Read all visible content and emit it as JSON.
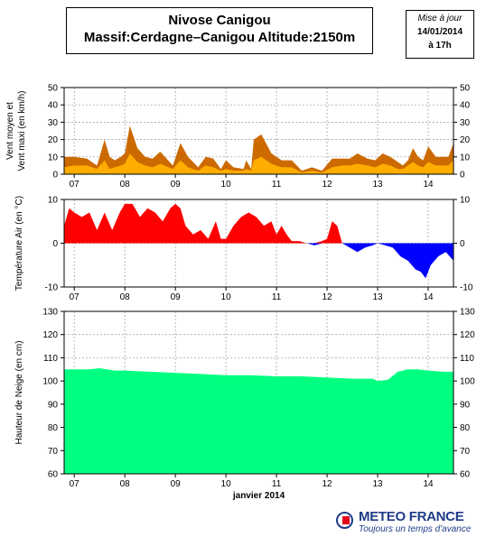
{
  "header": {
    "title_line1": "Nivose Canigou",
    "title_line2": "Massif:Cerdagne–Canigou Altitude:2150m"
  },
  "update_box": {
    "heading": "Mise à jour",
    "date": "14/01/2014",
    "time": "à 17h"
  },
  "logo": {
    "name": "METEO FRANCE",
    "tagline": "Toujours un temps d'avance"
  },
  "colors": {
    "wind_max": "#cc6a00",
    "wind_mean": "#ffad00",
    "temp_pos": "#ff0000",
    "temp_neg": "#0000ff",
    "snow": "#00ff80",
    "grid": "#9a9a9a"
  },
  "chart_data": [
    {
      "type": "area",
      "ylabel": "Vent moyen et Vent maxi (en km/h)",
      "x_tick_labels": [
        "07",
        "08",
        "09",
        "10",
        "11",
        "12",
        "13",
        "14"
      ],
      "x_tick_days": [
        7,
        8,
        9,
        10,
        11,
        12,
        13,
        14
      ],
      "ylim": [
        0,
        50
      ],
      "yticks": [
        0,
        10,
        20,
        30,
        40,
        50
      ],
      "x": [
        6.8,
        7.0,
        7.25,
        7.45,
        7.6,
        7.7,
        7.8,
        7.92,
        8.0,
        8.1,
        8.25,
        8.4,
        8.55,
        8.7,
        8.95,
        9.1,
        9.25,
        9.35,
        9.45,
        9.6,
        9.75,
        9.9,
        10.0,
        10.15,
        10.35,
        10.4,
        10.5,
        10.55,
        10.7,
        10.9,
        11.1,
        11.3,
        11.5,
        11.7,
        11.9,
        12.1,
        12.3,
        12.45,
        12.6,
        12.8,
        12.95,
        13.1,
        13.25,
        13.4,
        13.5,
        13.6,
        13.7,
        13.8,
        13.9,
        14.0,
        14.15,
        14.3,
        14.4,
        14.5
      ],
      "series": [
        {
          "values": [
            10,
            10,
            9,
            5,
            20,
            10,
            8,
            10,
            12,
            28,
            15,
            10,
            9,
            13,
            5,
            18,
            10,
            7,
            4,
            10,
            9,
            3,
            8,
            4,
            3,
            8,
            3,
            20,
            23,
            12,
            8,
            8,
            2,
            4,
            2,
            9,
            9,
            9,
            12,
            9,
            8,
            12,
            10,
            7,
            5,
            8,
            15,
            10,
            8,
            16,
            10,
            10,
            10,
            18
          ]
        },
        {
          "values": [
            4,
            5,
            5,
            3,
            8,
            3,
            4,
            5,
            6,
            12,
            7,
            5,
            4,
            6,
            3,
            8,
            4,
            3,
            2,
            5,
            4,
            2,
            3,
            2,
            2,
            3,
            2,
            8,
            10,
            6,
            4,
            4,
            1,
            2,
            1,
            4,
            5,
            5,
            6,
            5,
            4,
            6,
            5,
            3,
            3,
            5,
            7,
            5,
            4,
            7,
            5,
            5,
            5,
            8
          ]
        }
      ]
    },
    {
      "type": "area",
      "ylabel": "Température Air (en °C)",
      "x_tick_labels": [
        "07",
        "08",
        "09",
        "10",
        "11",
        "12",
        "13",
        "14"
      ],
      "x_tick_days": [
        7,
        8,
        9,
        10,
        11,
        12,
        13,
        14
      ],
      "ylim": [
        -10,
        10
      ],
      "yticks": [
        -10,
        0,
        10
      ],
      "x": [
        6.8,
        6.9,
        7.0,
        7.15,
        7.3,
        7.45,
        7.6,
        7.75,
        7.9,
        8.0,
        8.15,
        8.3,
        8.45,
        8.6,
        8.75,
        8.9,
        9.0,
        9.1,
        9.2,
        9.35,
        9.5,
        9.65,
        9.8,
        9.9,
        10.0,
        10.15,
        10.3,
        10.45,
        10.6,
        10.75,
        10.9,
        11.0,
        11.1,
        11.2,
        11.3,
        11.45,
        11.6,
        11.75,
        11.9,
        12.0,
        12.1,
        12.2,
        12.3,
        12.45,
        12.6,
        12.75,
        12.9,
        13.0,
        13.15,
        13.3,
        13.45,
        13.6,
        13.75,
        13.85,
        13.95,
        14.05,
        14.2,
        14.35,
        14.5
      ],
      "series": [
        {
          "values": [
            4,
            8,
            7,
            6,
            7,
            3,
            7,
            3,
            7,
            9,
            9,
            6,
            8,
            7,
            5,
            8,
            9,
            8,
            4,
            2,
            3,
            1,
            5,
            1,
            1,
            4,
            6,
            7,
            6,
            4,
            5,
            2,
            4,
            2,
            0.5,
            0.5,
            0,
            -0.5,
            0.5,
            1,
            5,
            4,
            0,
            -1,
            -2,
            -1,
            -0.5,
            0,
            -0.5,
            -1,
            -3,
            -4,
            -6,
            -6.5,
            -8,
            -5,
            -3,
            -2,
            -4
          ]
        }
      ]
    },
    {
      "type": "area",
      "xlabel": "janvier 2014",
      "ylabel": "Hauteur de Neige (en cm)",
      "x_tick_labels": [
        "07",
        "08",
        "09",
        "10",
        "11",
        "12",
        "13",
        "14"
      ],
      "x_tick_days": [
        7,
        8,
        9,
        10,
        11,
        12,
        13,
        14
      ],
      "ylim": [
        60,
        130
      ],
      "yticks": [
        60,
        70,
        80,
        90,
        100,
        110,
        120,
        130
      ],
      "x": [
        6.8,
        7.0,
        7.3,
        7.5,
        7.8,
        8.0,
        8.5,
        9.0,
        9.5,
        10.0,
        10.5,
        11.0,
        11.5,
        12.0,
        12.5,
        12.9,
        13.0,
        13.2,
        13.4,
        13.6,
        13.8,
        14.0,
        14.3,
        14.5
      ],
      "series": [
        {
          "values": [
            105,
            105,
            105,
            105.5,
            104.5,
            104.5,
            104,
            103.5,
            103,
            102.5,
            102.5,
            102,
            102,
            101.5,
            101,
            101,
            100,
            100.5,
            104,
            105,
            105,
            104.5,
            104,
            104
          ]
        }
      ]
    }
  ]
}
